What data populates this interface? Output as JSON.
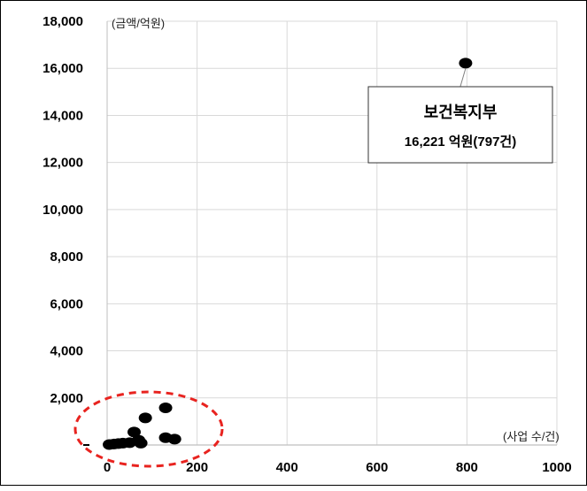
{
  "chart_data": {
    "type": "scatter",
    "title": "",
    "xlabel": "(사업 수/건)",
    "ylabel": "(금액/억원)",
    "xlim": [
      0,
      1000
    ],
    "ylim": [
      0,
      18000
    ],
    "x_ticks": [
      "0",
      "200",
      "400",
      "600",
      "800",
      "1000"
    ],
    "y_ticks": [
      "2,000",
      "4,000",
      "6,000",
      "8,000",
      "10,000",
      "12,000",
      "14,000",
      "16,000",
      "18,000"
    ],
    "grid": true,
    "points": [
      {
        "x": 797,
        "y": 16221
      },
      {
        "x": 130,
        "y": 1580
      },
      {
        "x": 85,
        "y": 1150
      },
      {
        "x": 60,
        "y": 550
      },
      {
        "x": 130,
        "y": 310
      },
      {
        "x": 150,
        "y": 250
      },
      {
        "x": 70,
        "y": 200
      },
      {
        "x": 75,
        "y": 80
      },
      {
        "x": 50,
        "y": 100
      },
      {
        "x": 35,
        "y": 80
      },
      {
        "x": 25,
        "y": 60
      },
      {
        "x": 15,
        "y": 40
      },
      {
        "x": 5,
        "y": 20
      }
    ],
    "annotation": {
      "title": "보건복지부",
      "value": "16,221 억원(797건)",
      "target_index": 0
    },
    "highlight": {
      "shape": "dashed-ellipse",
      "color": "#e8231f"
    },
    "marker_color": "#000000",
    "grid_color": "#d9d9d9"
  }
}
